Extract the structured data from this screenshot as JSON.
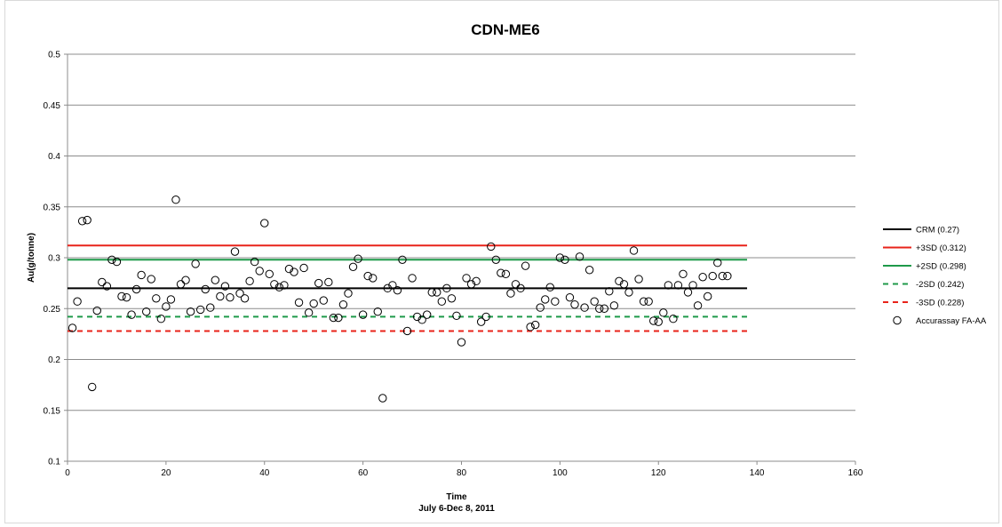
{
  "chart_data": {
    "type": "scatter",
    "title": "CDN-ME6",
    "xlabel": "Time",
    "xlabel2": "July 6-Dec 8, 2011",
    "ylabel": "Au(g/tonne)",
    "xlim": [
      0,
      160
    ],
    "ylim": [
      0.1,
      0.5
    ],
    "xticks": [
      "0",
      "20",
      "40",
      "60",
      "80",
      "100",
      "120",
      "140",
      "160"
    ],
    "yticks": [
      "0.1",
      "0.15",
      "0.2",
      "0.25",
      "0.3",
      "0.35",
      "0.4",
      "0.45",
      "0.5"
    ],
    "grid": "horizontal",
    "legend_position": "right",
    "reference_lines": [
      {
        "name": "CRM (0.27)",
        "y": 0.27,
        "x_range": [
          0,
          138
        ],
        "color": "#000000",
        "dash": false
      },
      {
        "name": "+3SD (0.312)",
        "y": 0.312,
        "x_range": [
          0,
          138
        ],
        "color": "#e8231a",
        "dash": false
      },
      {
        "name": "+2SD (0.298)",
        "y": 0.298,
        "x_range": [
          0,
          138
        ],
        "color": "#1f9a4a",
        "dash": false
      },
      {
        "name": "-2SD (0.242)",
        "y": 0.242,
        "x_range": [
          0,
          138
        ],
        "color": "#1f9a4a",
        "dash": true
      },
      {
        "name": "-3SD (0.228)",
        "y": 0.228,
        "x_range": [
          0,
          138
        ],
        "color": "#e8231a",
        "dash": true
      }
    ],
    "series": [
      {
        "name": "Accurassay FA-AA",
        "marker": "open-circle",
        "x": [
          1,
          2,
          3,
          4,
          5,
          6,
          7,
          8,
          9,
          10,
          11,
          12,
          13,
          14,
          15,
          16,
          17,
          18,
          19,
          20,
          21,
          22,
          23,
          24,
          25,
          26,
          27,
          28,
          29,
          30,
          31,
          32,
          33,
          34,
          35,
          36,
          37,
          38,
          39,
          40,
          41,
          42,
          43,
          44,
          45,
          46,
          47,
          48,
          49,
          50,
          51,
          52,
          53,
          54,
          55,
          56,
          57,
          58,
          59,
          60,
          61,
          62,
          63,
          64,
          65,
          66,
          67,
          68,
          69,
          70,
          71,
          72,
          73,
          74,
          75,
          76,
          77,
          78,
          79,
          80,
          81,
          82,
          83,
          84,
          85,
          86,
          87,
          88,
          89,
          90,
          91,
          92,
          93,
          94,
          95,
          96,
          97,
          98,
          99,
          100,
          101,
          102,
          103,
          104,
          105,
          106,
          107,
          108,
          109,
          110,
          111,
          112,
          113,
          114,
          115,
          116,
          117,
          118,
          119,
          120,
          121,
          122,
          123,
          124,
          125,
          126,
          127,
          128,
          129,
          130,
          131,
          132,
          133,
          134
        ],
        "y": [
          0.231,
          0.257,
          0.336,
          0.337,
          0.173,
          0.248,
          0.276,
          0.272,
          0.298,
          0.296,
          0.262,
          0.261,
          0.244,
          0.269,
          0.283,
          0.247,
          0.279,
          0.26,
          0.24,
          0.252,
          0.259,
          0.357,
          0.274,
          0.278,
          0.247,
          0.294,
          0.249,
          0.269,
          0.251,
          0.278,
          0.262,
          0.272,
          0.261,
          0.306,
          0.265,
          0.26,
          0.277,
          0.296,
          0.287,
          0.334,
          0.284,
          0.274,
          0.271,
          0.273,
          0.289,
          0.286,
          0.256,
          0.29,
          0.246,
          0.255,
          0.275,
          0.258,
          0.276,
          0.241,
          0.241,
          0.254,
          0.265,
          0.291,
          0.299,
          0.244,
          0.282,
          0.28,
          0.247,
          0.162,
          0.27,
          0.273,
          0.268,
          0.298,
          0.228,
          0.28,
          0.242,
          0.239,
          0.244,
          0.266,
          0.266,
          0.257,
          0.27,
          0.26,
          0.243,
          0.217,
          0.28,
          0.274,
          0.277,
          0.237,
          0.242,
          0.311,
          0.298,
          0.285,
          0.284,
          0.265,
          0.274,
          0.27,
          0.292,
          0.232,
          0.234,
          0.251,
          0.259,
          0.271,
          0.257,
          0.3,
          0.298,
          0.261,
          0.254,
          0.301,
          0.251,
          0.288,
          0.257,
          0.25,
          0.25,
          0.267,
          0.253,
          0.277,
          0.274,
          0.266,
          0.307,
          0.279,
          0.257,
          0.257,
          0.238,
          0.237,
          0.246,
          0.273,
          0.24,
          0.273,
          0.284,
          0.266,
          0.273,
          0.253,
          0.281,
          0.262,
          0.282,
          0.295,
          0.282,
          0.282
        ]
      }
    ]
  }
}
